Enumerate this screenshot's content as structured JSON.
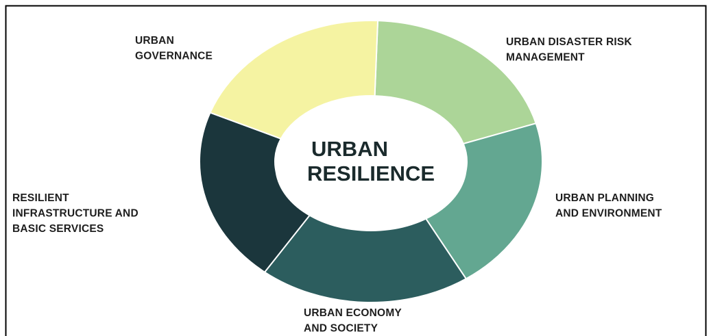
{
  "center": {
    "lines": [
      "URBAN",
      "RESILIENCE"
    ]
  },
  "segments": [
    {
      "lines": [
        "URBAN DISASTER RISK",
        "MANAGEMENT"
      ]
    },
    {
      "lines": [
        "URBAN PLANNING",
        "AND ENVIRONMENT"
      ]
    },
    {
      "lines": [
        "URBAN ECONOMY",
        "AND SOCIETY"
      ]
    },
    {
      "lines": [
        "RESILIENT",
        "INFRASTRUCTURE AND",
        "BASIC SERVICES"
      ]
    },
    {
      "lines": [
        "URBAN",
        "GOVERNANCE"
      ]
    }
  ]
}
